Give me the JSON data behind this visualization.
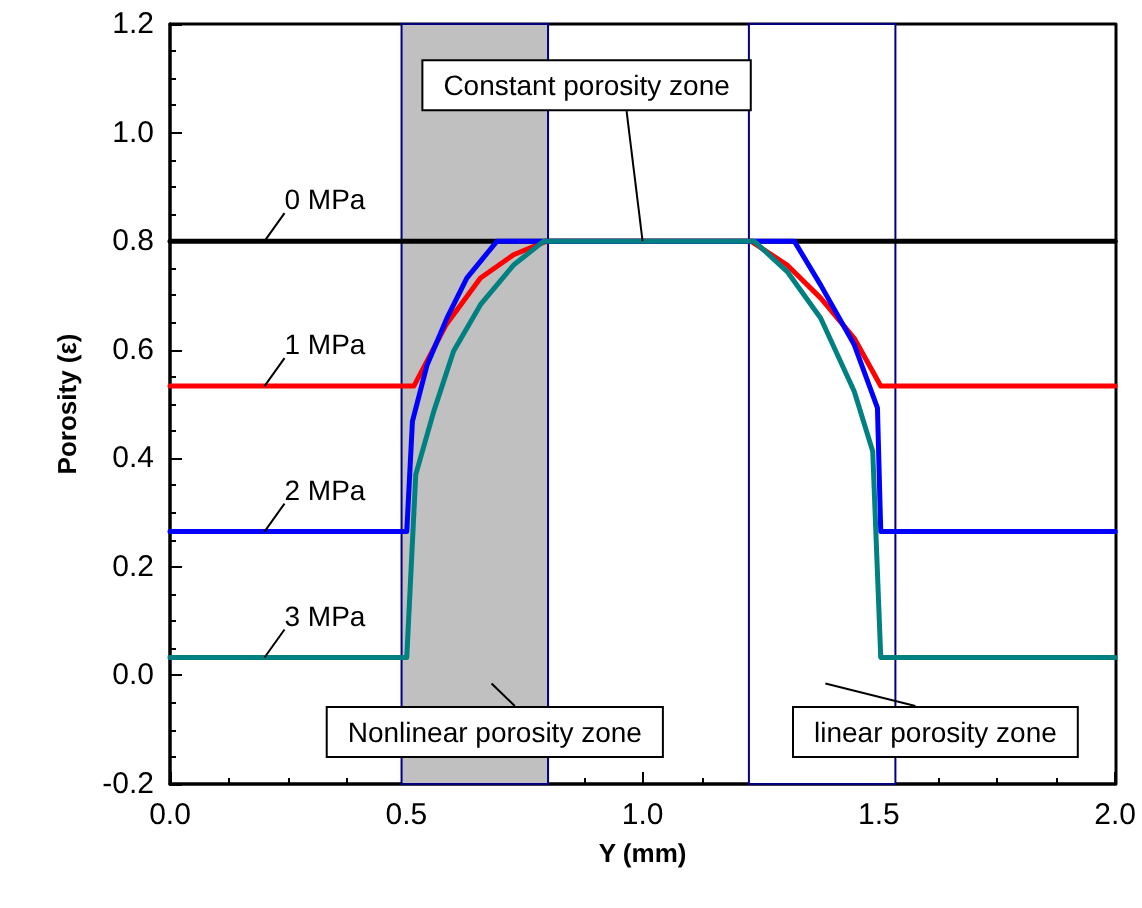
{
  "chart_data": {
    "type": "line",
    "xlabel": "Y (mm)",
    "ylabel": "Porosity (ε)",
    "xlim": [
      0,
      2.0
    ],
    "xticks": [
      {
        "value": 0,
        "label": "0.0"
      },
      {
        "value": 0.5,
        "label": "0.5"
      },
      {
        "value": 1,
        "label": "1.0"
      },
      {
        "value": 1.5,
        "label": "1.5"
      },
      {
        "value": 2,
        "label": "2.0"
      }
    ],
    "ylim": [
      -0.2,
      1.2
    ],
    "yticks": [
      {
        "value": -0.2,
        "label": "-0.2"
      },
      {
        "value": 0,
        "label": "0.0"
      },
      {
        "value": 0.2,
        "label": "0.2"
      },
      {
        "value": 0.4,
        "label": "0.4"
      },
      {
        "value": 0.6,
        "label": "0.6"
      },
      {
        "value": 0.8,
        "label": "0.8"
      },
      {
        "value": 1,
        "label": "1.0"
      },
      {
        "value": 1.2,
        "label": "1.2"
      }
    ],
    "grid": false,
    "legend": false,
    "marker": "none",
    "line_style": "solid",
    "series": [
      {
        "name": "0 MPa",
        "color": "#000000",
        "x": [
          0,
          2.0
        ],
        "values": [
          0.8,
          0.8
        ]
      },
      {
        "name": "1 MPa",
        "color": "#ff0000",
        "x": [
          0,
          0.516,
          0.585,
          0.657,
          0.727,
          0.797,
          1.229,
          1.306,
          1.377,
          1.448,
          1.504,
          2.0
        ],
        "values": [
          0.533,
          0.533,
          0.647,
          0.732,
          0.775,
          0.8,
          0.8,
          0.756,
          0.695,
          0.621,
          0.533,
          0.533
        ]
      },
      {
        "name": "2 MPa",
        "color": "#0000ff",
        "x": [
          0,
          0.501,
          0.513,
          0.544,
          0.586,
          0.628,
          0.692,
          1.321,
          1.377,
          1.448,
          1.497,
          1.504,
          2.0
        ],
        "values": [
          0.265,
          0.265,
          0.468,
          0.572,
          0.658,
          0.732,
          0.8,
          0.8,
          0.719,
          0.609,
          0.493,
          0.265,
          0.265
        ]
      },
      {
        "name": "3 MPa",
        "color": "#008080",
        "x": [
          0,
          0.501,
          0.52,
          0.558,
          0.6,
          0.657,
          0.727,
          0.791,
          1.236,
          1.306,
          1.377,
          1.448,
          1.487,
          1.504,
          2.0
        ],
        "values": [
          0.033,
          0.033,
          0.37,
          0.486,
          0.597,
          0.683,
          0.756,
          0.8,
          0.8,
          0.744,
          0.658,
          0.523,
          0.413,
          0.033,
          0.033
        ]
      }
    ],
    "bands": [
      {
        "axis": "x",
        "from": 0.49,
        "to": 0.8,
        "label": "Nonlinear porosity zone",
        "color": "#c0c0c0"
      },
      {
        "axis": "x",
        "from": 1.225,
        "to": 1.535,
        "label": "linear porosity zone",
        "color": "#ffffff"
      }
    ],
    "annotations": [
      {
        "text": "Constant porosity zone",
        "x": 1.0,
        "y": 0.8
      }
    ]
  }
}
